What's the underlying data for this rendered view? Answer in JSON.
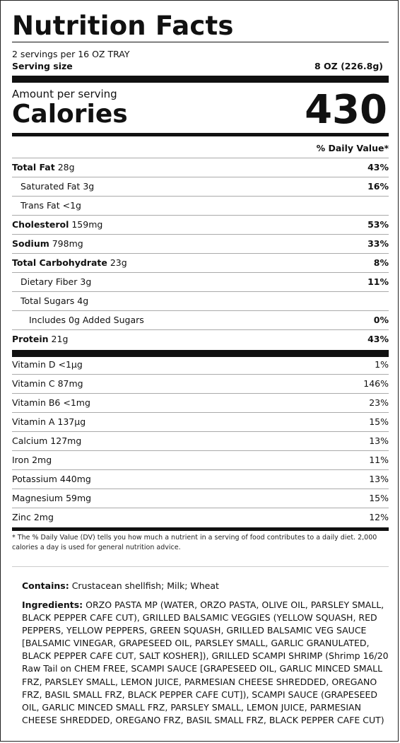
{
  "title": "Nutrition Facts",
  "servings_per_container": "2 servings per 16 OZ TRAY",
  "serving_size_label": "Serving size",
  "serving_size_value": "8 OZ (226.8g)",
  "amount_per_serving": "Amount per serving",
  "calories_label": "Calories",
  "calories_value": "430",
  "daily_value_header": "% Daily Value*",
  "nutrients": [
    {
      "name": "Total Fat",
      "amount": "28g",
      "dv": "43%"
    },
    {
      "name": "Saturated Fat",
      "amount": "3g",
      "dv": "16%"
    },
    {
      "name": "Trans Fat",
      "amount": "<1g",
      "dv": ""
    },
    {
      "name": "Cholesterol",
      "amount": "159mg",
      "dv": "53%"
    },
    {
      "name": "Sodium",
      "amount": "798mg",
      "dv": "33%"
    },
    {
      "name": "Total Carbohydrate",
      "amount": "23g",
      "dv": "8%"
    },
    {
      "name": "Dietary Fiber",
      "amount": "3g",
      "dv": "11%"
    },
    {
      "name": "Total Sugars",
      "amount": "4g",
      "dv": ""
    },
    {
      "name": "Includes 0g Added Sugars",
      "amount": "",
      "dv": "0%"
    },
    {
      "name": "Protein",
      "amount": "21g",
      "dv": "43%"
    }
  ],
  "vitamins": [
    {
      "name": "Vitamin D",
      "amount": "<1µg",
      "dv": "1%"
    },
    {
      "name": "Vitamin C",
      "amount": "87mg",
      "dv": "146%"
    },
    {
      "name": "Vitamin B6",
      "amount": "<1mg",
      "dv": "23%"
    },
    {
      "name": "Vitamin A",
      "amount": "137µg",
      "dv": "15%"
    },
    {
      "name": "Calcium",
      "amount": "127mg",
      "dv": "13%"
    },
    {
      "name": "Iron",
      "amount": "2mg",
      "dv": "11%"
    },
    {
      "name": "Potassium",
      "amount": "440mg",
      "dv": "13%"
    },
    {
      "name": "Magnesium",
      "amount": "59mg",
      "dv": "15%"
    },
    {
      "name": "Zinc",
      "amount": "2mg",
      "dv": "12%"
    }
  ],
  "footnote": "*  The % Daily Value (DV) tells you how much a nutrient in a serving of food contributes to a daily diet. 2,000 calories a day is used for general nutrition advice.",
  "contains_label": "Contains:",
  "contains_text": "Crustacean shellfish; Milk; Wheat",
  "ingredients_label": "Ingredients:",
  "ingredients_text": "ORZO PASTA MP (WATER, ORZO PASTA, OLIVE OIL, PARSLEY SMALL, BLACK PEPPER CAFE CUT), GRILLED BALSAMIC VEGGIES (YELLOW SQUASH, RED PEPPERS, YELLOW PEPPERS, GREEN SQUASH, GRILLED BALSAMIC VEG SAUCE [BALSAMIC VINEGAR, GRAPESEED OIL, PARSLEY SMALL, GARLIC GRANULATED, BLACK PEPPER CAFE CUT, SALT KOSHER]), GRILLED SCAMPI SHRIMP (Shrimp 16/20 Raw Tail on CHEM FREE, SCAMPI SAUCE [GRAPESEED OIL, GARLIC MINCED SMALL FRZ, PARSLEY SMALL, LEMON JUICE, PARMESIAN CHEESE SHREDDED, OREGANO FRZ, BASIL SMALL FRZ, BLACK PEPPER CAFE CUT]), SCAMPI SAUCE (GRAPESEED OIL, GARLIC MINCED SMALL FRZ, PARSLEY SMALL, LEMON JUICE, PARMESIAN CHEESE SHREDDED, OREGANO FRZ, BASIL SMALL FRZ, BLACK PEPPER CAFE CUT)"
}
